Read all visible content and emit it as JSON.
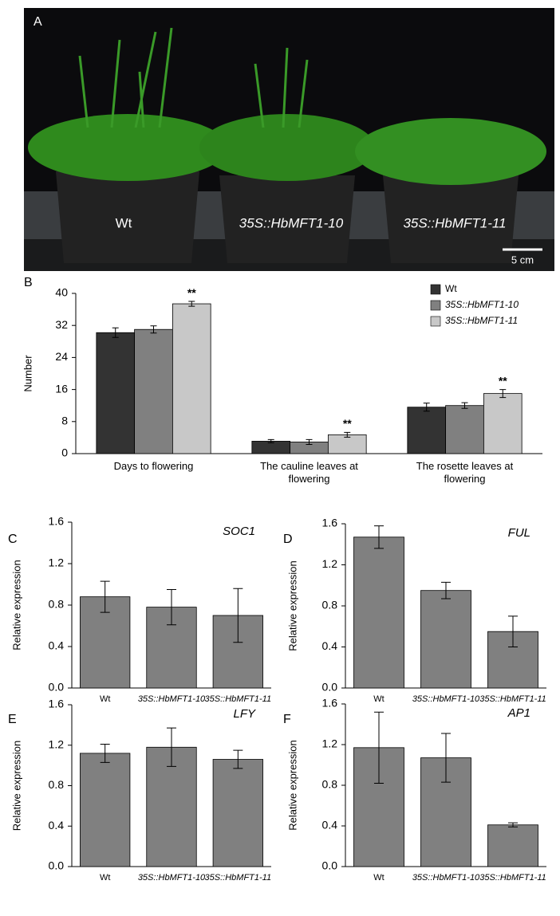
{
  "photo_panel": {
    "panel": "A",
    "labels": [
      "Wt",
      "35S::HbMFT1-10",
      "35S::HbMFT1-11"
    ],
    "scale": "5 cm"
  },
  "chart_data": [
    {
      "type": "bar",
      "panel": "B",
      "y_label": "Number",
      "categories": [
        "Days to flowering",
        "The cauline leaves at flowering",
        "The rosette leaves at flowering"
      ],
      "series": [
        {
          "name": "Wt",
          "color": "#333333",
          "values": [
            30.2,
            3.1,
            11.6
          ],
          "errors": [
            1.2,
            0.4,
            1.0
          ]
        },
        {
          "name": "35S::HbMFT1-10",
          "color": "#808080",
          "values": [
            31.0,
            2.9,
            12.0
          ],
          "errors": [
            0.9,
            0.6,
            0.7
          ]
        },
        {
          "name": "35S::HbMFT1-11",
          "color": "#c8c8c8",
          "values": [
            37.4,
            4.7,
            15.0
          ],
          "errors": [
            0.6,
            0.6,
            1.0
          ],
          "annotations": [
            "**",
            "**",
            "**"
          ]
        }
      ],
      "ylim": [
        0,
        40
      ],
      "yticks": [
        0,
        8,
        16,
        24,
        32,
        40
      ],
      "legend": "top-right"
    },
    {
      "type": "bar",
      "panel": "C",
      "title": "SOC1",
      "y_label": "Relative expression",
      "color": "#808080",
      "categories": [
        "Wt",
        "35S::HbMFT1-10",
        "35S::HbMFT1-11"
      ],
      "values": [
        0.88,
        0.78,
        0.7
      ],
      "errors": [
        0.15,
        0.17,
        0.26
      ],
      "ylim": [
        0,
        1.6
      ],
      "yticks": [
        {
          "value": 0,
          "label": "0.0"
        },
        0.4,
        0.8,
        1.2,
        1.6
      ]
    },
    {
      "type": "bar",
      "panel": "D",
      "title": "FUL",
      "y_label": "Relative expression",
      "color": "#808080",
      "categories": [
        "Wt",
        "35S::HbMFT1-10",
        "35S::HbMFT1-11"
      ],
      "values": [
        1.47,
        0.95,
        0.55
      ],
      "errors": [
        0.11,
        0.08,
        0.15
      ],
      "ylim": [
        0,
        1.6
      ],
      "yticks": [
        {
          "value": 0,
          "label": "0.0"
        },
        0.4,
        0.8,
        1.2,
        1.6
      ]
    },
    {
      "type": "bar",
      "panel": "E",
      "title": "LFY",
      "y_label": "Relative expression",
      "color": "#808080",
      "categories": [
        "Wt",
        "35S::HbMFT1-10",
        "35S::HbMFT1-11"
      ],
      "values": [
        1.12,
        1.18,
        1.06
      ],
      "errors": [
        0.09,
        0.19,
        0.09
      ],
      "ylim": [
        0,
        1.6
      ],
      "yticks": [
        {
          "value": 0,
          "label": "0.0"
        },
        0.4,
        0.8,
        1.2,
        1.6
      ]
    },
    {
      "type": "bar",
      "panel": "F",
      "title": "AP1",
      "y_label": "Relative expression",
      "color": "#808080",
      "categories": [
        "Wt",
        "35S::HbMFT1-10",
        "35S::HbMFT1-11"
      ],
      "values": [
        1.17,
        1.07,
        0.41
      ],
      "errors": [
        0.35,
        0.24,
        0.02
      ],
      "ylim": [
        0,
        1.6
      ],
      "yticks": [
        {
          "value": 0,
          "label": "0.0"
        },
        0.4,
        0.8,
        1.2,
        1.6
      ]
    }
  ]
}
